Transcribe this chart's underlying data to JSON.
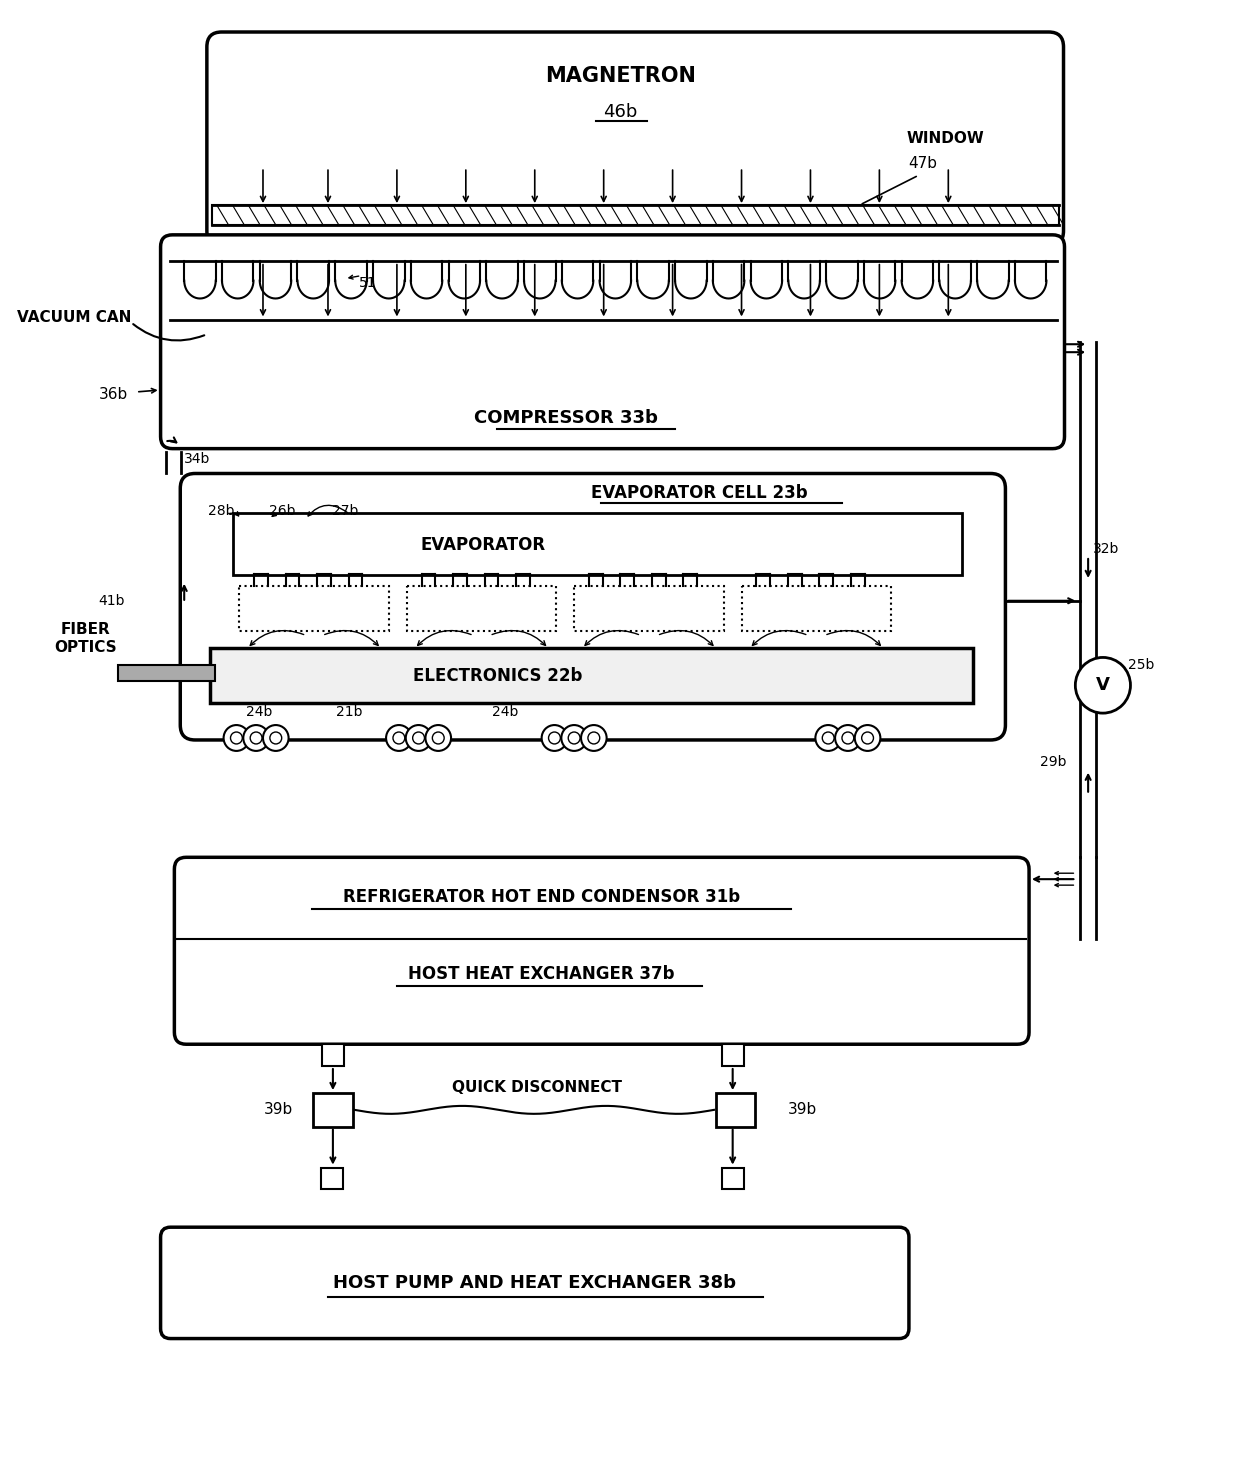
{
  "bg_color": "#ffffff",
  "line_color": "#000000",
  "magnetron_label": "MAGNETRON",
  "magnetron_ref": "46b",
  "window_label": "WINDOW",
  "window_ref": "47b",
  "vacuum_can_label": "VACUUM CAN",
  "ref_36b": "36b",
  "ref_51": "51",
  "compressor_label": "COMPRESSOR 33b",
  "ref_34b": "34b",
  "evap_cell_label": "EVAPORATOR CELL 23b",
  "ref_28b": "28b",
  "ref_26b": "26b",
  "ref_27b": "27b",
  "evaporator_label": "EVAPORATOR",
  "ref_41b": "41b",
  "fiber_optics_label": "FIBER\nOPTICS",
  "electronics_label": "ELECTRONICS 22b",
  "ref_24b": "24b",
  "ref_21b": "21b",
  "ref_32b": "32b",
  "ref_25b": "25b",
  "ref_29b": "29b",
  "condenser_label": "REFRIGERATOR HOT END CONDENSOR 31b",
  "hhe_label": "HOST HEAT EXCHANGER 37b",
  "ref_39b": "39b",
  "qd_label": "QUICK DISCONNECT",
  "host_pump_label": "HOST PUMP AND HEAT EXCHANGER 38b"
}
